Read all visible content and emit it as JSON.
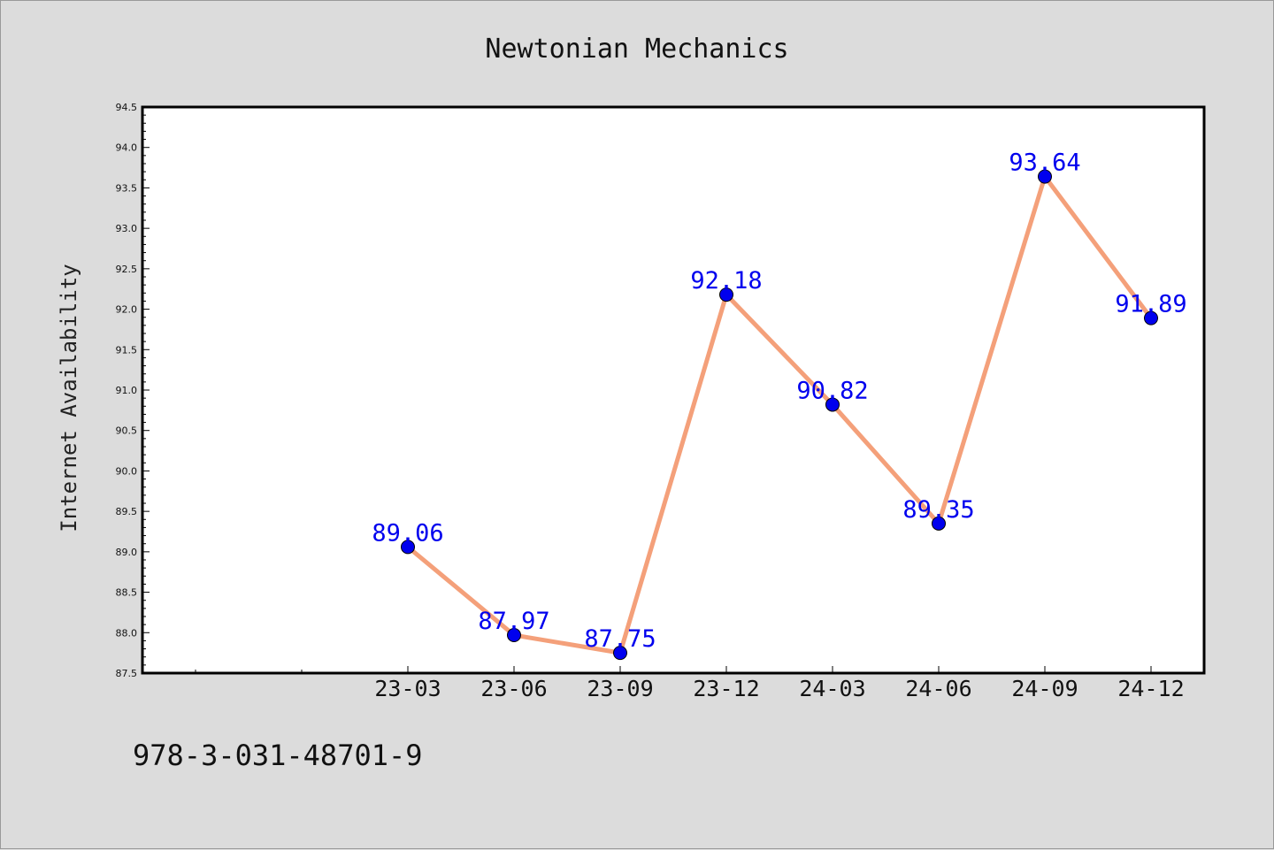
{
  "chart_data": {
    "type": "line",
    "title": "Newtonian Mechanics",
    "xlabel": "",
    "ylabel": "Internet Availability",
    "categories": [
      "23-03",
      "23-06",
      "23-09",
      "23-12",
      "24-03",
      "24-06",
      "24-09",
      "24-12"
    ],
    "series": [
      {
        "values": [
          89.06,
          87.97,
          87.75,
          92.18,
          90.82,
          89.35,
          93.64,
          91.89
        ],
        "data_labels": [
          "89.06",
          "87.97",
          "87.75",
          "92.18",
          "90.82",
          "89.35",
          "93.64",
          "91.89"
        ],
        "line_color": "#f4a07a",
        "marker_color": "#0000ee",
        "label_color": "#0000ee"
      }
    ],
    "ylim": [
      87.5,
      94.5
    ],
    "yticks": [
      "87.5",
      "88.0",
      "88.5",
      "89.0",
      "89.5",
      "90.0",
      "90.5",
      "91.0",
      "91.5",
      "92.0",
      "92.5",
      "93.0",
      "93.5",
      "94.0",
      "94.5"
    ],
    "grid": false,
    "legend": "none"
  },
  "footer": {
    "isbn": "978-3-031-48701-9"
  },
  "colors": {
    "background": "#dcdcdc",
    "plot_background": "#ffffff",
    "axis": "#000000"
  }
}
